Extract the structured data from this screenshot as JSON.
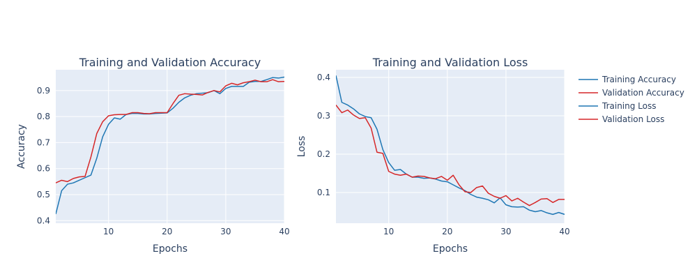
{
  "legend": {
    "placement": "top-right",
    "items": [
      {
        "label": "Training Accuracy",
        "color": "#1f77b4"
      },
      {
        "label": "Validation Accuracy",
        "color": "#d62728"
      },
      {
        "label": "Training Loss",
        "color": "#1f77b4"
      },
      {
        "label": "Validation Loss",
        "color": "#d62728"
      }
    ]
  },
  "colors": {
    "plot_background": "#e5ecf6",
    "grid": "#ffffff",
    "text": "#2a3f5f",
    "training": "#1f77b4",
    "validation": "#d62728"
  },
  "chart_data": [
    {
      "type": "line",
      "title": "Training and Validation Accuracy",
      "xlabel": "Epochs",
      "ylabel": "Accuracy",
      "xlim": [
        1,
        40
      ],
      "ylim": [
        0.39,
        0.98
      ],
      "xticks": [
        10,
        20,
        30,
        40
      ],
      "yticks": [
        0.4,
        0.5,
        0.6,
        0.7,
        0.8,
        0.9
      ],
      "ytick_labels": [
        "0.4",
        "0.5",
        "0.6",
        "0.7",
        "0.8",
        "0.9"
      ],
      "grid": true,
      "x": [
        1,
        2,
        3,
        4,
        5,
        6,
        7,
        8,
        9,
        10,
        11,
        12,
        13,
        14,
        15,
        16,
        17,
        18,
        19,
        20,
        21,
        22,
        23,
        24,
        25,
        26,
        27,
        28,
        29,
        30,
        31,
        32,
        33,
        34,
        35,
        36,
        37,
        38,
        39,
        40
      ],
      "series": [
        {
          "name": "Training Accuracy",
          "color": "#1f77b4",
          "values": [
            0.425,
            0.515,
            0.54,
            0.545,
            0.555,
            0.565,
            0.575,
            0.64,
            0.722,
            0.77,
            0.795,
            0.79,
            0.808,
            0.812,
            0.812,
            0.81,
            0.81,
            0.812,
            0.813,
            0.814,
            0.832,
            0.855,
            0.872,
            0.882,
            0.888,
            0.89,
            0.892,
            0.9,
            0.888,
            0.908,
            0.916,
            0.916,
            0.916,
            0.932,
            0.935,
            0.935,
            0.942,
            0.95,
            0.948,
            0.952
          ]
        },
        {
          "name": "Validation Accuracy",
          "color": "#d62728",
          "values": [
            0.545,
            0.555,
            0.55,
            0.562,
            0.568,
            0.57,
            0.645,
            0.735,
            0.78,
            0.803,
            0.807,
            0.808,
            0.808,
            0.815,
            0.815,
            0.812,
            0.811,
            0.815,
            0.815,
            0.815,
            0.85,
            0.882,
            0.888,
            0.886,
            0.885,
            0.883,
            0.893,
            0.9,
            0.895,
            0.918,
            0.928,
            0.922,
            0.93,
            0.934,
            0.94,
            0.934,
            0.934,
            0.942,
            0.934,
            0.935
          ]
        }
      ]
    },
    {
      "type": "line",
      "title": "Training and Validation Loss",
      "xlabel": "Epochs",
      "ylabel": "Loss",
      "xlim": [
        1,
        40
      ],
      "ylim": [
        0.02,
        0.42
      ],
      "xticks": [
        10,
        20,
        30,
        40
      ],
      "yticks": [
        0.1,
        0.2,
        0.3,
        0.4
      ],
      "ytick_labels": [
        "0.1",
        "0.2",
        "0.3",
        "0.4"
      ],
      "grid": true,
      "x": [
        1,
        2,
        3,
        4,
        5,
        6,
        7,
        8,
        9,
        10,
        11,
        12,
        13,
        14,
        15,
        16,
        17,
        18,
        19,
        20,
        21,
        22,
        23,
        24,
        25,
        26,
        27,
        28,
        29,
        30,
        31,
        32,
        33,
        34,
        35,
        36,
        37,
        38,
        39,
        40
      ],
      "series": [
        {
          "name": "Training Loss",
          "color": "#1f77b4",
          "values": [
            0.405,
            0.335,
            0.328,
            0.318,
            0.305,
            0.298,
            0.295,
            0.265,
            0.212,
            0.178,
            0.158,
            0.16,
            0.148,
            0.14,
            0.14,
            0.137,
            0.138,
            0.135,
            0.13,
            0.128,
            0.12,
            0.112,
            0.105,
            0.095,
            0.088,
            0.085,
            0.081,
            0.073,
            0.086,
            0.068,
            0.063,
            0.062,
            0.063,
            0.054,
            0.05,
            0.053,
            0.047,
            0.043,
            0.048,
            0.043
          ]
        },
        {
          "name": "Validation Loss",
          "color": "#d62728",
          "values": [
            0.328,
            0.308,
            0.315,
            0.302,
            0.293,
            0.295,
            0.268,
            0.205,
            0.202,
            0.155,
            0.148,
            0.145,
            0.148,
            0.14,
            0.143,
            0.142,
            0.138,
            0.136,
            0.142,
            0.132,
            0.145,
            0.12,
            0.102,
            0.1,
            0.113,
            0.117,
            0.098,
            0.09,
            0.085,
            0.092,
            0.078,
            0.085,
            0.075,
            0.066,
            0.074,
            0.083,
            0.084,
            0.074,
            0.082,
            0.082
          ]
        }
      ]
    }
  ]
}
